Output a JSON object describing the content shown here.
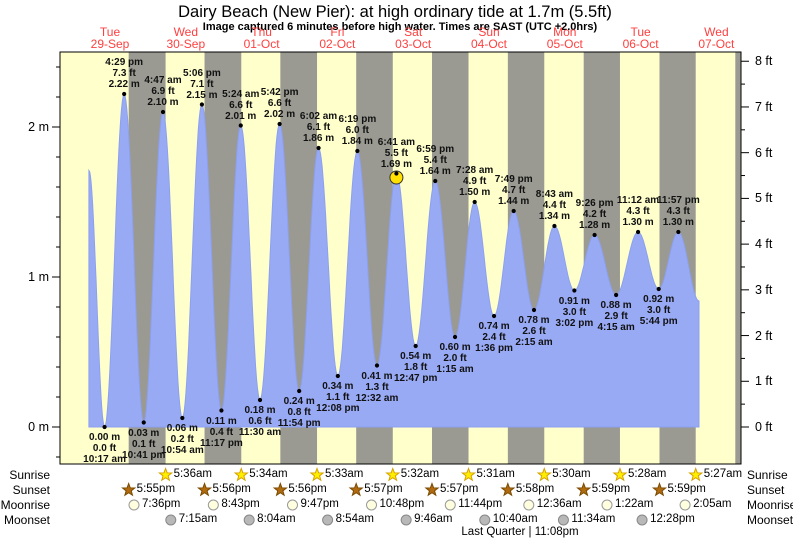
{
  "title": "Dairy Beach (New Pier): at high  ordinary tide at 1.7m (5.5ft)",
  "subtitle": "Image captured 6 minutes before high water. Times are SAST (UTC +2.0hrs)",
  "colors": {
    "day_band": "#ffffcc",
    "night_band": "#9a9a92",
    "tide_fill": "#99aaf5",
    "tide_stroke": "#8ca0f0",
    "label_red": "#ff4040",
    "marker_yellow": "#ffe000",
    "sunrise_star": "#ffee00",
    "sunrise_star_stroke": "#d4a000",
    "sunset_star": "#b06a10",
    "sunset_star_stroke": "#7a4a00",
    "moonrise_fill": "#ffffe0",
    "moonrise_stroke": "#999999",
    "moonset_fill": "#b8b8b8",
    "moonset_stroke": "#888888",
    "axis": "#000000"
  },
  "chart_data": {
    "type": "area",
    "title": "Dairy Beach (New Pier): at high  ordinary tide at 1.7m (5.5ft)",
    "ylim_m": [
      -0.25,
      2.5
    ],
    "left_axis_unit": "m",
    "right_axis_unit": "ft",
    "left_ticks_m": [
      0,
      1,
      2
    ],
    "right_ticks_ft": [
      0,
      1,
      2,
      3,
      4,
      5,
      6,
      7,
      8
    ],
    "days": [
      {
        "weekday": "Tue",
        "date": "29-Sep"
      },
      {
        "weekday": "Wed",
        "date": "30-Sep"
      },
      {
        "weekday": "Thu",
        "date": "01-Oct"
      },
      {
        "weekday": "Fri",
        "date": "02-Oct"
      },
      {
        "weekday": "Sat",
        "date": "03-Oct"
      },
      {
        "weekday": "Sun",
        "date": "04-Oct"
      },
      {
        "weekday": "Mon",
        "date": "05-Oct"
      },
      {
        "weekday": "Tue",
        "date": "06-Oct"
      },
      {
        "weekday": "Wed",
        "date": "07-Oct"
      }
    ],
    "tides": [
      {
        "type": "low",
        "day": 0,
        "time": "10:17 am",
        "m": 0.0,
        "ft": 0.0
      },
      {
        "type": "high",
        "day": 0,
        "time": "4:29 pm",
        "m": 2.22,
        "ft": 7.3
      },
      {
        "type": "low",
        "day": 0,
        "time": "10:41 pm",
        "m": 0.03,
        "ft": 0.1
      },
      {
        "type": "high",
        "day": 1,
        "time": "4:47 am",
        "m": 2.1,
        "ft": 6.9
      },
      {
        "type": "low",
        "day": 1,
        "time": "10:54 am",
        "m": 0.06,
        "ft": 0.2
      },
      {
        "type": "high",
        "day": 1,
        "time": "5:06 pm",
        "m": 2.15,
        "ft": 7.1
      },
      {
        "type": "low",
        "day": 1,
        "time": "11:17 pm",
        "m": 0.11,
        "ft": 0.4
      },
      {
        "type": "high",
        "day": 2,
        "time": "5:24 am",
        "m": 2.01,
        "ft": 6.6
      },
      {
        "type": "low",
        "day": 2,
        "time": "11:30 am",
        "m": 0.18,
        "ft": 0.6
      },
      {
        "type": "high",
        "day": 2,
        "time": "5:42 pm",
        "m": 2.02,
        "ft": 6.6
      },
      {
        "type": "low",
        "day": 2,
        "time": "11:54 pm",
        "m": 0.24,
        "ft": 0.8
      },
      {
        "type": "high",
        "day": 3,
        "time": "6:02 am",
        "m": 1.86,
        "ft": 6.1
      },
      {
        "type": "low",
        "day": 3,
        "time": "12:08 pm",
        "m": 0.34,
        "ft": 1.1
      },
      {
        "type": "high",
        "day": 3,
        "time": "6:19 pm",
        "m": 1.84,
        "ft": 6.0
      },
      {
        "type": "low",
        "day": 4,
        "time": "12:32 am",
        "m": 0.41,
        "ft": 1.3
      },
      {
        "type": "high",
        "day": 4,
        "time": "6:41 am",
        "m": 1.69,
        "ft": 5.5,
        "current": true
      },
      {
        "type": "low",
        "day": 4,
        "time": "12:47 pm",
        "m": 0.54,
        "ft": 1.8
      },
      {
        "type": "high",
        "day": 4,
        "time": "6:59 pm",
        "m": 1.64,
        "ft": 5.4
      },
      {
        "type": "low",
        "day": 5,
        "time": "1:15 am",
        "m": 0.6,
        "ft": 2.0
      },
      {
        "type": "high",
        "day": 5,
        "time": "7:28 am",
        "m": 1.5,
        "ft": 4.9
      },
      {
        "type": "low",
        "day": 5,
        "time": "1:36 pm",
        "m": 0.74,
        "ft": 2.4
      },
      {
        "type": "high",
        "day": 5,
        "time": "7:49 pm",
        "m": 1.44,
        "ft": 4.7
      },
      {
        "type": "low",
        "day": 6,
        "time": "2:15 am",
        "m": 0.78,
        "ft": 2.6
      },
      {
        "type": "high",
        "day": 6,
        "time": "8:43 am",
        "m": 1.34,
        "ft": 4.4
      },
      {
        "type": "low",
        "day": 6,
        "time": "3:02 pm",
        "m": 0.91,
        "ft": 3.0
      },
      {
        "type": "high",
        "day": 6,
        "time": "9:26 pm",
        "m": 1.28,
        "ft": 4.2
      },
      {
        "type": "low",
        "day": 7,
        "time": "4:15 am",
        "m": 0.88,
        "ft": 2.9
      },
      {
        "type": "high",
        "day": 7,
        "time": "11:12 am",
        "m": 1.3,
        "ft": 4.3
      },
      {
        "type": "low",
        "day": 7,
        "time": "5:44 pm",
        "m": 0.92,
        "ft": 3.0
      },
      {
        "type": "high",
        "day": 7,
        "time": "11:57 pm",
        "m": 1.3,
        "ft": 4.3
      }
    ],
    "curve_start": {
      "day": 0,
      "time": "5:20 am",
      "m": 1.71
    },
    "curve_end": {
      "day": 8,
      "time": "6:30 am",
      "m": 0.84
    },
    "astro": {
      "rows": [
        {
          "id": "sunrise",
          "label": "Sunrise",
          "icon": "sunrise-star-icon",
          "entries": [
            {
              "day": 1,
              "time": "5:36am"
            },
            {
              "day": 2,
              "time": "5:34am"
            },
            {
              "day": 3,
              "time": "5:33am"
            },
            {
              "day": 4,
              "time": "5:32am"
            },
            {
              "day": 5,
              "time": "5:31am"
            },
            {
              "day": 6,
              "time": "5:30am"
            },
            {
              "day": 7,
              "time": "5:28am"
            },
            {
              "day": 8,
              "time": "5:27am"
            }
          ]
        },
        {
          "id": "sunset",
          "label": "Sunset",
          "icon": "sunset-star-icon",
          "entries": [
            {
              "day": 0,
              "time": "5:55pm"
            },
            {
              "day": 1,
              "time": "5:56pm"
            },
            {
              "day": 2,
              "time": "5:56pm"
            },
            {
              "day": 3,
              "time": "5:57pm"
            },
            {
              "day": 4,
              "time": "5:57pm"
            },
            {
              "day": 5,
              "time": "5:58pm"
            },
            {
              "day": 6,
              "time": "5:59pm"
            },
            {
              "day": 7,
              "time": "5:59pm"
            }
          ]
        },
        {
          "id": "moonrise",
          "label": "Moonrise",
          "icon": "moonrise-circle-icon",
          "entries": [
            {
              "day": 0,
              "time": "7:36pm"
            },
            {
              "day": 1,
              "time": "8:43pm"
            },
            {
              "day": 2,
              "time": "9:47pm"
            },
            {
              "day": 3,
              "time": "10:48pm"
            },
            {
              "day": 4,
              "time": "11:44pm"
            },
            {
              "day": 6,
              "time": "12:36am"
            },
            {
              "day": 7,
              "time": "1:22am"
            },
            {
              "day": 8,
              "time": "2:05am"
            }
          ]
        },
        {
          "id": "moonset",
          "label": "Moonset",
          "icon": "moonset-circle-icon",
          "entries": [
            {
              "day": 1,
              "time": "7:15am"
            },
            {
              "day": 2,
              "time": "8:04am"
            },
            {
              "day": 3,
              "time": "8:54am"
            },
            {
              "day": 4,
              "time": "9:46am"
            },
            {
              "day": 5,
              "time": "10:40am"
            },
            {
              "day": 6,
              "time": "11:34am"
            },
            {
              "day": 7,
              "time": "12:28pm"
            }
          ]
        }
      ],
      "footnote": "Last Quarter | 11:08pm"
    }
  }
}
